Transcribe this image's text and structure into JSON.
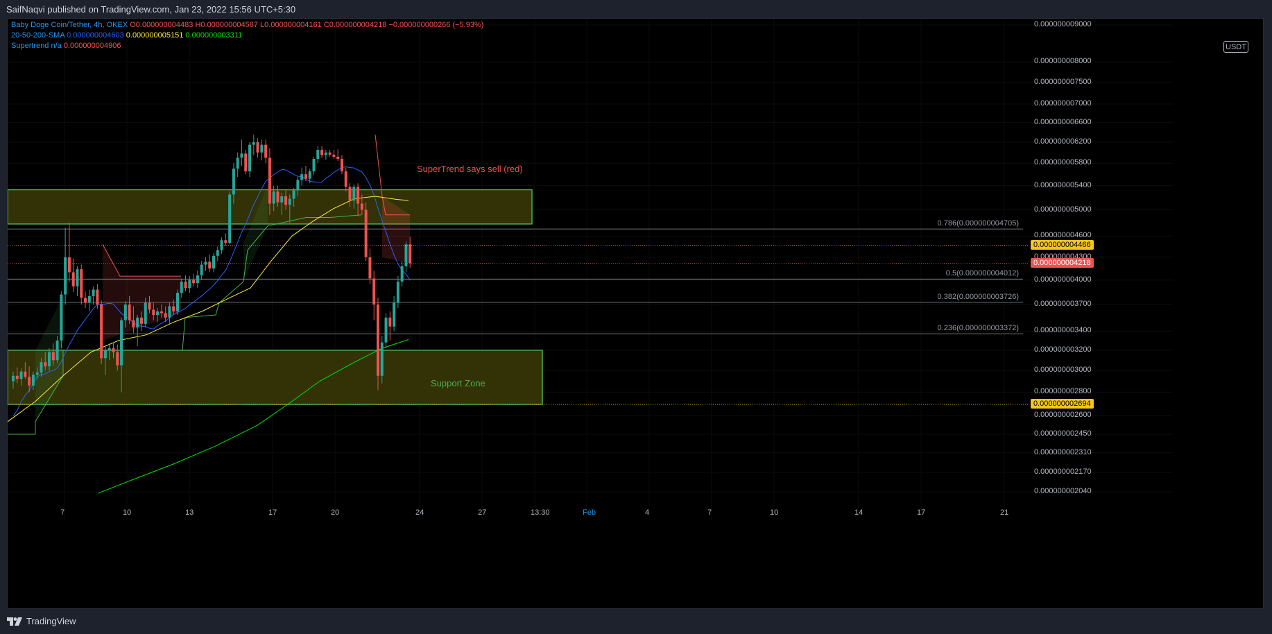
{
  "header": {
    "publish_info": "SaifNaqvi published on TradingView.com, Jan 23, 2022 15:56 UTC+5:30"
  },
  "legend": {
    "symbol": "Baby Doge Coin/Tether, 4h, OKEX",
    "ohlc": {
      "o": "O0.000000004483",
      "h": "H0.000000004587",
      "l": "L0.000000004161",
      "c": "C0.000000004218",
      "change": "−0.000000000266 (−5.93%)"
    },
    "sma": {
      "label": "20-50-200-SMA",
      "v20": "0.000000004603",
      "v50": "0.000000005151",
      "v200": "0.000000003311"
    },
    "supertrend": {
      "label": "Supertrend",
      "v1": "n/a",
      "v2": "0.000000004906"
    }
  },
  "currency_button": "USDT",
  "price_axis": {
    "ticks": [
      "0.000000009000",
      "0.000000008000",
      "0.000000007500",
      "0.000000007000",
      "0.000000006600",
      "0.000000006200",
      "0.000000005800",
      "0.000000005400",
      "0.000000005000",
      "0.000000004600",
      "0.000000004300",
      "0.000000004000",
      "0.000000003700",
      "0.000000003400",
      "0.000000003200",
      "0.000000003000",
      "0.000000002800",
      "0.000000002600",
      "0.000000002450",
      "0.000000002310",
      "0.000000002170",
      "0.000000002040"
    ],
    "tick_values": [
      9.0,
      8.0,
      7.5,
      7.0,
      6.6,
      6.2,
      5.8,
      5.4,
      5.0,
      4.6,
      4.3,
      4.0,
      3.7,
      3.4,
      3.2,
      3.0,
      2.8,
      2.6,
      2.45,
      2.31,
      2.17,
      2.04
    ],
    "tag_sma": "0.000000004466",
    "tag_last": "0.000000004218",
    "tag_support": "0.000000002694"
  },
  "time_axis": [
    "7",
    "10",
    "13",
    "17",
    "20",
    "24",
    "27",
    "13:30",
    "Feb",
    "4",
    "7",
    "10",
    "14",
    "17",
    "21"
  ],
  "fib_levels": [
    {
      "label": "0.786(0.000000004705)",
      "value": 4.705
    },
    {
      "label": "0.5(0.000000004012)",
      "value": 4.012
    },
    {
      "label": "0.382(0.000000003726)",
      "value": 3.726
    },
    {
      "label": "0.236(0.000000003372)",
      "value": 3.372
    }
  ],
  "zones": {
    "resistance": {
      "top": 5.33,
      "bottom": 4.78
    },
    "support": {
      "top": 3.2,
      "bottom": 2.694,
      "label": "Support Zone"
    }
  },
  "annotations": {
    "supertrend_note": "SuperTrend says sell (red)"
  },
  "footer": {
    "logo_text": "TradingView"
  },
  "colors": {
    "up": "#26a69a",
    "down": "#ef5350",
    "zone_border": "#4caf50",
    "zone_fill": "#3b3b07",
    "sma20": "#2962ff",
    "sma50": "#ffeb3b",
    "sma200": "#00e600",
    "st_up": "#4caf50",
    "st_down": "#ef5350"
  },
  "chart_data": {
    "type": "candlestick",
    "unit_note": "prices in units of 1e-9 USDT",
    "candles": [
      [
        2.9,
        2.99,
        2.83,
        2.95
      ],
      [
        2.95,
        3.03,
        2.88,
        2.92
      ],
      [
        2.92,
        3.02,
        2.86,
        2.99
      ],
      [
        2.99,
        3.08,
        2.92,
        2.94
      ],
      [
        2.94,
        3.04,
        2.8,
        2.86
      ],
      [
        2.86,
        2.99,
        2.82,
        2.96
      ],
      [
        2.96,
        3.03,
        2.92,
        2.98
      ],
      [
        2.98,
        3.12,
        2.94,
        3.08
      ],
      [
        3.08,
        3.18,
        3.0,
        3.04
      ],
      [
        3.04,
        3.22,
        3.0,
        3.18
      ],
      [
        3.18,
        3.27,
        3.05,
        3.1
      ],
      [
        3.1,
        3.35,
        3.07,
        3.3
      ],
      [
        3.3,
        3.86,
        3.22,
        3.82
      ],
      [
        3.82,
        4.72,
        3.7,
        4.3
      ],
      [
        4.3,
        4.8,
        3.98,
        4.1
      ],
      [
        4.1,
        4.28,
        3.85,
        3.92
      ],
      [
        3.92,
        4.18,
        3.8,
        4.14
      ],
      [
        4.14,
        4.2,
        3.7,
        3.78
      ],
      [
        3.78,
        3.86,
        3.66,
        3.72
      ],
      [
        3.72,
        3.88,
        3.62,
        3.8
      ],
      [
        3.8,
        3.92,
        3.7,
        3.88
      ],
      [
        3.88,
        3.95,
        3.65,
        3.7
      ],
      [
        3.7,
        3.75,
        3.06,
        3.12
      ],
      [
        3.12,
        3.25,
        2.96,
        3.2
      ],
      [
        3.2,
        3.26,
        3.1,
        3.22
      ],
      [
        3.22,
        3.28,
        3.12,
        3.18
      ],
      [
        3.18,
        3.26,
        3.0,
        3.05
      ],
      [
        3.05,
        3.55,
        2.8,
        3.52
      ],
      [
        3.52,
        3.74,
        3.44,
        3.7
      ],
      [
        3.7,
        3.8,
        3.48,
        3.52
      ],
      [
        3.52,
        3.68,
        3.38,
        3.44
      ],
      [
        3.44,
        3.58,
        3.24,
        3.55
      ],
      [
        3.55,
        3.62,
        3.4,
        3.48
      ],
      [
        3.48,
        3.78,
        3.44,
        3.72
      ],
      [
        3.72,
        3.8,
        3.6,
        3.64
      ],
      [
        3.64,
        3.72,
        3.52,
        3.58
      ],
      [
        3.58,
        3.66,
        3.5,
        3.62
      ],
      [
        3.62,
        3.7,
        3.55,
        3.6
      ],
      [
        3.6,
        3.68,
        3.5,
        3.55
      ],
      [
        3.55,
        3.72,
        3.48,
        3.68
      ],
      [
        3.68,
        3.76,
        3.58,
        3.62
      ],
      [
        3.62,
        3.88,
        3.58,
        3.84
      ],
      [
        3.84,
        4.02,
        3.78,
        3.98
      ],
      [
        3.98,
        4.06,
        3.86,
        3.9
      ],
      [
        3.9,
        4.05,
        3.84,
        4.0
      ],
      [
        4.0,
        4.08,
        3.92,
        3.96
      ],
      [
        3.96,
        4.12,
        3.9,
        4.06
      ],
      [
        4.06,
        4.25,
        4.0,
        4.2
      ],
      [
        4.2,
        4.3,
        4.12,
        4.24
      ],
      [
        4.24,
        4.34,
        4.1,
        4.15
      ],
      [
        4.15,
        4.36,
        4.1,
        4.32
      ],
      [
        4.32,
        4.45,
        4.25,
        4.4
      ],
      [
        4.4,
        4.58,
        4.35,
        4.54
      ],
      [
        4.54,
        4.64,
        4.46,
        4.5
      ],
      [
        4.5,
        5.3,
        4.48,
        5.25
      ],
      [
        5.25,
        5.8,
        5.1,
        5.7
      ],
      [
        5.7,
        6.0,
        5.55,
        5.9
      ],
      [
        5.9,
        6.25,
        5.75,
        5.98
      ],
      [
        5.98,
        6.05,
        5.6,
        5.65
      ],
      [
        5.65,
        6.2,
        5.55,
        6.15
      ],
      [
        6.15,
        6.35,
        5.95,
        6.2
      ],
      [
        6.2,
        6.28,
        5.9,
        6.0
      ],
      [
        6.0,
        6.25,
        5.85,
        6.15
      ],
      [
        6.15,
        6.25,
        5.8,
        5.9
      ],
      [
        5.9,
        6.08,
        4.92,
        5.1
      ],
      [
        5.1,
        5.4,
        4.98,
        5.3
      ],
      [
        5.3,
        5.4,
        5.05,
        5.12
      ],
      [
        5.12,
        5.28,
        4.92,
        5.22
      ],
      [
        5.22,
        5.32,
        5.0,
        5.08
      ],
      [
        5.08,
        5.25,
        4.8,
        5.18
      ],
      [
        5.18,
        5.36,
        5.05,
        5.32
      ],
      [
        5.32,
        5.55,
        5.22,
        5.5
      ],
      [
        5.5,
        5.72,
        5.4,
        5.6
      ],
      [
        5.6,
        5.75,
        5.48,
        5.52
      ],
      [
        5.52,
        5.7,
        5.44,
        5.65
      ],
      [
        5.65,
        5.92,
        5.58,
        5.88
      ],
      [
        5.88,
        6.12,
        5.8,
        6.05
      ],
      [
        6.05,
        6.12,
        5.9,
        5.95
      ],
      [
        5.95,
        6.05,
        5.86,
        6.0
      ],
      [
        6.0,
        6.05,
        5.92,
        5.96
      ],
      [
        5.96,
        6.05,
        5.88,
        5.92
      ],
      [
        5.92,
        6.06,
        5.84,
        5.88
      ],
      [
        5.88,
        5.95,
        5.6,
        5.65
      ],
      [
        5.65,
        5.72,
        5.3,
        5.38
      ],
      [
        5.38,
        5.45,
        5.05,
        5.15
      ],
      [
        5.15,
        5.42,
        5.02,
        5.38
      ],
      [
        5.38,
        5.44,
        4.9,
        5.1
      ],
      [
        5.1,
        5.25,
        4.92,
        5.0
      ],
      [
        5.0,
        5.12,
        4.25,
        4.3
      ],
      [
        4.3,
        4.42,
        3.95,
        4.02
      ],
      [
        4.02,
        4.12,
        3.52,
        3.7
      ],
      [
        3.7,
        3.78,
        2.82,
        2.95
      ],
      [
        2.95,
        3.35,
        2.88,
        3.28
      ],
      [
        3.28,
        3.6,
        3.22,
        3.55
      ],
      [
        3.55,
        3.62,
        3.3,
        3.45
      ],
      [
        3.45,
        3.8,
        3.4,
        3.72
      ],
      [
        3.72,
        4.05,
        3.66,
        3.98
      ],
      [
        3.98,
        4.25,
        3.92,
        4.18
      ],
      [
        4.18,
        4.52,
        4.1,
        4.48
      ],
      [
        4.48,
        4.59,
        4.16,
        4.22
      ]
    ]
  }
}
